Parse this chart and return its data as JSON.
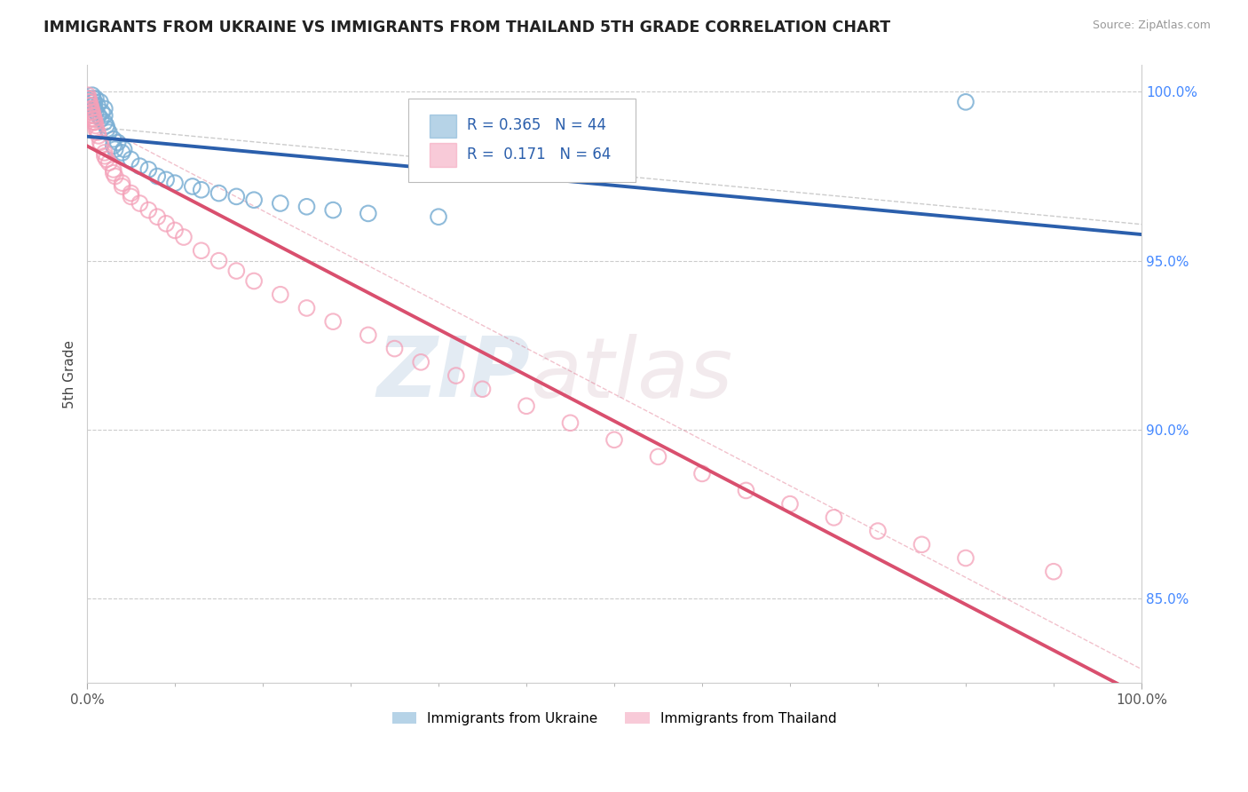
{
  "title": "IMMIGRANTS FROM UKRAINE VS IMMIGRANTS FROM THAILAND 5TH GRADE CORRELATION CHART",
  "source_text": "Source: ZipAtlas.com",
  "ylabel": "5th Grade",
  "ukraine_R": 0.365,
  "ukraine_N": 44,
  "thailand_R": 0.171,
  "thailand_N": 64,
  "ukraine_color": "#7BAFD4",
  "thailand_color": "#F4A0B8",
  "ukraine_line_color": "#2B5FAC",
  "thailand_line_color": "#D94F6E",
  "watermark_zip": "ZIP",
  "watermark_atlas": "atlas",
  "xlim": [
    0.0,
    0.12
  ],
  "ylim": [
    0.825,
    1.008
  ],
  "ytick_positions": [
    0.85,
    0.9,
    0.95,
    1.0
  ],
  "right_yticklabels": [
    "85.0%",
    "90.0%",
    "95.0%",
    "100.0%"
  ],
  "xtick_positions": [
    0.0,
    0.12
  ],
  "xticklabels": [
    "0.0%",
    "100.0%"
  ],
  "ukraine_x": [
    0.0002,
    0.0003,
    0.0005,
    0.0006,
    0.0007,
    0.0008,
    0.0008,
    0.0009,
    0.001,
    0.001,
    0.0012,
    0.0013,
    0.0015,
    0.0016,
    0.0017,
    0.002,
    0.002,
    0.002,
    0.0022,
    0.0023,
    0.0025,
    0.003,
    0.003,
    0.0032,
    0.0035,
    0.004,
    0.0042,
    0.005,
    0.006,
    0.007,
    0.008,
    0.009,
    0.01,
    0.012,
    0.013,
    0.015,
    0.017,
    0.019,
    0.022,
    0.025,
    0.028,
    0.032,
    0.04,
    0.1
  ],
  "ukraine_y": [
    0.998,
    0.997,
    0.996,
    0.999,
    0.998,
    0.997,
    0.996,
    0.995,
    0.998,
    0.994,
    0.996,
    0.993,
    0.997,
    0.992,
    0.994,
    0.995,
    0.993,
    0.991,
    0.99,
    0.989,
    0.988,
    0.986,
    0.984,
    0.983,
    0.985,
    0.982,
    0.983,
    0.98,
    0.978,
    0.977,
    0.975,
    0.974,
    0.973,
    0.972,
    0.971,
    0.97,
    0.969,
    0.968,
    0.967,
    0.966,
    0.965,
    0.964,
    0.963,
    0.997
  ],
  "thailand_x": [
    0.0001,
    0.0001,
    0.0002,
    0.0002,
    0.0003,
    0.0003,
    0.0004,
    0.0004,
    0.0005,
    0.0005,
    0.0006,
    0.0006,
    0.0007,
    0.0007,
    0.0008,
    0.0008,
    0.0009,
    0.001,
    0.001,
    0.0012,
    0.0013,
    0.0015,
    0.0016,
    0.002,
    0.002,
    0.0022,
    0.0025,
    0.003,
    0.003,
    0.0032,
    0.004,
    0.004,
    0.005,
    0.005,
    0.006,
    0.007,
    0.008,
    0.009,
    0.01,
    0.011,
    0.013,
    0.015,
    0.017,
    0.019,
    0.022,
    0.025,
    0.028,
    0.032,
    0.035,
    0.038,
    0.042,
    0.045,
    0.05,
    0.055,
    0.06,
    0.065,
    0.07,
    0.075,
    0.08,
    0.085,
    0.09,
    0.095,
    0.1,
    0.11
  ],
  "thailand_y": [
    0.999,
    0.998,
    0.998,
    0.997,
    0.997,
    0.996,
    0.996,
    0.995,
    0.995,
    0.994,
    0.994,
    0.993,
    0.993,
    0.992,
    0.992,
    0.991,
    0.991,
    0.99,
    0.989,
    0.988,
    0.987,
    0.985,
    0.984,
    0.982,
    0.981,
    0.98,
    0.979,
    0.977,
    0.976,
    0.975,
    0.973,
    0.972,
    0.97,
    0.969,
    0.967,
    0.965,
    0.963,
    0.961,
    0.959,
    0.957,
    0.953,
    0.95,
    0.947,
    0.944,
    0.94,
    0.936,
    0.932,
    0.928,
    0.924,
    0.92,
    0.916,
    0.912,
    0.907,
    0.902,
    0.897,
    0.892,
    0.887,
    0.882,
    0.878,
    0.874,
    0.87,
    0.866,
    0.862,
    0.858
  ]
}
